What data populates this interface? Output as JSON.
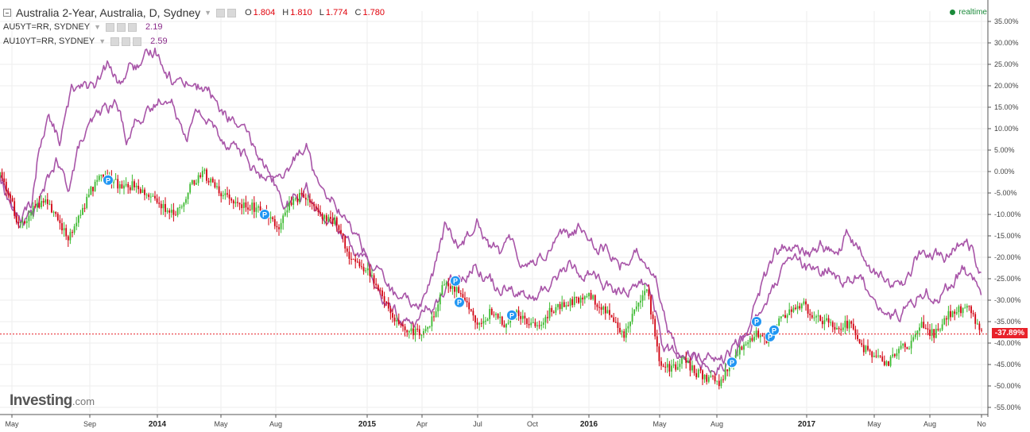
{
  "header": {
    "main_title": "Australia 2-Year, Australia, D, Sydney",
    "ohlc": [
      {
        "label": "O",
        "value": "1.804"
      },
      {
        "label": "H",
        "value": "1.810"
      },
      {
        "label": "L",
        "value": "1.774"
      },
      {
        "label": "C",
        "value": "1.780"
      }
    ],
    "indicators": [
      {
        "label": "AU5YT=RR, SYDNEY",
        "value": "2.19"
      },
      {
        "label": "AU10YT=RR, SYDNEY",
        "value": "2.59"
      }
    ],
    "realtime_label": "realtime"
  },
  "logo": {
    "text": "Investing",
    "suffix": ".com"
  },
  "last_value_label": "-37.89%",
  "colors": {
    "up": "#3cb930",
    "down": "#d1000f",
    "compare": "#a855a8",
    "last_line": "#e8222a",
    "marker": "#2196f3",
    "grid": "#eeeeee",
    "axis": "#444444"
  },
  "markers": {
    "symbol": "P",
    "points": [
      {
        "t": 0.136,
        "y": -2.0
      },
      {
        "t": 0.333,
        "y": -10.0
      },
      {
        "t": 0.573,
        "y": -25.5
      },
      {
        "t": 0.578,
        "y": -30.5
      },
      {
        "t": 0.644,
        "y": -33.5
      },
      {
        "t": 0.921,
        "y": -44.5
      },
      {
        "t": 0.952,
        "y": -35.0
      },
      {
        "t": 0.969,
        "y": -38.5
      },
      {
        "t": 0.974,
        "y": -37.0
      }
    ]
  },
  "chart_data": {
    "type": "line",
    "title": "Australia 2-Year, Australia, D, Sydney",
    "y_unit": "%",
    "ylim": [
      -56,
      36
    ],
    "y_ticks": [
      35,
      30,
      25,
      20,
      15,
      10,
      5,
      0,
      -5,
      -10,
      -15,
      -20,
      -25,
      -30,
      -35,
      -40,
      -45,
      -50,
      -55
    ],
    "x_ticks": [
      {
        "label": "May",
        "t": 0.015,
        "bold": false
      },
      {
        "label": "Sep",
        "t": 0.113,
        "bold": false
      },
      {
        "label": "2014",
        "t": 0.198,
        "bold": true
      },
      {
        "label": "May",
        "t": 0.278,
        "bold": false
      },
      {
        "label": "Aug",
        "t": 0.347,
        "bold": false
      },
      {
        "label": "2015",
        "t": 0.462,
        "bold": true
      },
      {
        "label": "Apr",
        "t": 0.531,
        "bold": false
      },
      {
        "label": "Jul",
        "t": 0.601,
        "bold": false
      },
      {
        "label": "Oct",
        "t": 0.67,
        "bold": false
      },
      {
        "label": "2016",
        "t": 0.741,
        "bold": true
      },
      {
        "label": "May",
        "t": 0.83,
        "bold": false
      },
      {
        "label": "Aug",
        "t": 0.902,
        "bold": false
      },
      {
        "label": "2017",
        "t": 1.015,
        "bold": true
      },
      {
        "label": "May",
        "t": 1.1,
        "bold": false
      },
      {
        "label": "Aug",
        "t": 1.17,
        "bold": false
      },
      {
        "label": "No",
        "t": 1.235,
        "bold": false
      }
    ],
    "last_value": -37.89,
    "series": [
      {
        "name": "Australia 2-Year",
        "style": "candles",
        "points": [
          [
            0.0,
            -1
          ],
          [
            0.01,
            -5
          ],
          [
            0.025,
            -13
          ],
          [
            0.04,
            -9
          ],
          [
            0.055,
            -7
          ],
          [
            0.07,
            -10
          ],
          [
            0.085,
            -16
          ],
          [
            0.1,
            -11
          ],
          [
            0.115,
            -4
          ],
          [
            0.13,
            -1
          ],
          [
            0.14,
            -2
          ],
          [
            0.155,
            -4
          ],
          [
            0.17,
            -3
          ],
          [
            0.185,
            -6
          ],
          [
            0.2,
            -7
          ],
          [
            0.215,
            -10
          ],
          [
            0.23,
            -8
          ],
          [
            0.24,
            -3
          ],
          [
            0.255,
            0
          ],
          [
            0.27,
            -4
          ],
          [
            0.285,
            -6
          ],
          [
            0.3,
            -8
          ],
          [
            0.315,
            -8
          ],
          [
            0.333,
            -10
          ],
          [
            0.35,
            -13
          ],
          [
            0.365,
            -8
          ],
          [
            0.38,
            -5
          ],
          [
            0.395,
            -8
          ],
          [
            0.41,
            -11
          ],
          [
            0.425,
            -12
          ],
          [
            0.44,
            -20
          ],
          [
            0.455,
            -22
          ],
          [
            0.47,
            -25
          ],
          [
            0.485,
            -30
          ],
          [
            0.5,
            -35
          ],
          [
            0.515,
            -37
          ],
          [
            0.53,
            -38
          ],
          [
            0.545,
            -34
          ],
          [
            0.56,
            -25
          ],
          [
            0.575,
            -28
          ],
          [
            0.59,
            -32
          ],
          [
            0.605,
            -36
          ],
          [
            0.62,
            -32
          ],
          [
            0.635,
            -36
          ],
          [
            0.65,
            -33
          ],
          [
            0.665,
            -35
          ],
          [
            0.68,
            -36
          ],
          [
            0.695,
            -32
          ],
          [
            0.71,
            -31
          ],
          [
            0.725,
            -30
          ],
          [
            0.74,
            -28
          ],
          [
            0.755,
            -32
          ],
          [
            0.77,
            -34
          ],
          [
            0.785,
            -38
          ],
          [
            0.8,
            -31
          ],
          [
            0.815,
            -28
          ],
          [
            0.83,
            -44
          ],
          [
            0.845,
            -46
          ],
          [
            0.86,
            -44
          ],
          [
            0.875,
            -47
          ],
          [
            0.89,
            -48
          ],
          [
            0.905,
            -49
          ],
          [
            0.921,
            -45
          ],
          [
            0.935,
            -40
          ],
          [
            0.952,
            -38
          ],
          [
            0.965,
            -39
          ],
          [
            0.98,
            -35
          ],
          [
            0.995,
            -33
          ],
          [
            1.01,
            -31
          ],
          [
            1.025,
            -34
          ],
          [
            1.04,
            -35
          ],
          [
            1.055,
            -37
          ],
          [
            1.07,
            -35
          ],
          [
            1.085,
            -41
          ],
          [
            1.1,
            -43
          ],
          [
            1.115,
            -45
          ],
          [
            1.13,
            -42
          ],
          [
            1.145,
            -40
          ],
          [
            1.16,
            -36
          ],
          [
            1.175,
            -38
          ],
          [
            1.19,
            -34
          ],
          [
            1.205,
            -32
          ],
          [
            1.22,
            -32
          ],
          [
            1.235,
            -37.89
          ]
        ]
      },
      {
        "name": "AU5YT=RR, SYDNEY",
        "style": "line",
        "points": [
          [
            0.0,
            -1
          ],
          [
            0.01,
            -6
          ],
          [
            0.025,
            -12
          ],
          [
            0.04,
            -10
          ],
          [
            0.055,
            -5
          ],
          [
            0.07,
            2
          ],
          [
            0.085,
            -4
          ],
          [
            0.1,
            6
          ],
          [
            0.115,
            10
          ],
          [
            0.13,
            14
          ],
          [
            0.145,
            16
          ],
          [
            0.16,
            8
          ],
          [
            0.175,
            14
          ],
          [
            0.19,
            13
          ],
          [
            0.205,
            18
          ],
          [
            0.22,
            15
          ],
          [
            0.235,
            10
          ],
          [
            0.25,
            14
          ],
          [
            0.265,
            11
          ],
          [
            0.28,
            8
          ],
          [
            0.295,
            7
          ],
          [
            0.31,
            3
          ],
          [
            0.325,
            -1
          ],
          [
            0.34,
            -3
          ],
          [
            0.355,
            -8
          ],
          [
            0.37,
            -7
          ],
          [
            0.385,
            -3
          ],
          [
            0.4,
            -10
          ],
          [
            0.415,
            -12
          ],
          [
            0.43,
            -14
          ],
          [
            0.445,
            -17
          ],
          [
            0.46,
            -22
          ],
          [
            0.475,
            -28
          ],
          [
            0.49,
            -32
          ],
          [
            0.505,
            -34
          ],
          [
            0.52,
            -36
          ],
          [
            0.535,
            -33
          ],
          [
            0.55,
            -30
          ],
          [
            0.565,
            -27
          ],
          [
            0.58,
            -24
          ],
          [
            0.595,
            -21
          ],
          [
            0.61,
            -23
          ],
          [
            0.625,
            -27
          ],
          [
            0.64,
            -25
          ],
          [
            0.655,
            -28
          ],
          [
            0.67,
            -30
          ],
          [
            0.685,
            -28
          ],
          [
            0.7,
            -24
          ],
          [
            0.715,
            -22
          ],
          [
            0.73,
            -24
          ],
          [
            0.745,
            -23
          ],
          [
            0.76,
            -26
          ],
          [
            0.775,
            -29
          ],
          [
            0.79,
            -27
          ],
          [
            0.805,
            -25
          ],
          [
            0.82,
            -28
          ],
          [
            0.835,
            -41
          ],
          [
            0.85,
            -43
          ],
          [
            0.865,
            -45
          ],
          [
            0.88,
            -44
          ],
          [
            0.895,
            -46
          ],
          [
            0.91,
            -44
          ],
          [
            0.925,
            -43
          ],
          [
            0.94,
            -38
          ],
          [
            0.955,
            -32
          ],
          [
            0.97,
            -29
          ],
          [
            0.985,
            -24
          ],
          [
            1.0,
            -21
          ],
          [
            1.015,
            -23
          ],
          [
            1.03,
            -25
          ],
          [
            1.045,
            -22
          ],
          [
            1.06,
            -26
          ],
          [
            1.075,
            -24
          ],
          [
            1.09,
            -27
          ],
          [
            1.105,
            -30
          ],
          [
            1.12,
            -34
          ],
          [
            1.135,
            -33
          ],
          [
            1.15,
            -30
          ],
          [
            1.165,
            -27
          ],
          [
            1.18,
            -29
          ],
          [
            1.195,
            -26
          ],
          [
            1.21,
            -23
          ],
          [
            1.225,
            -25
          ],
          [
            1.235,
            -29
          ]
        ]
      },
      {
        "name": "AU10YT=RR, SYDNEY",
        "style": "line",
        "points": [
          [
            0.0,
            -1
          ],
          [
            0.01,
            -5
          ],
          [
            0.025,
            -12
          ],
          [
            0.04,
            -8
          ],
          [
            0.05,
            7
          ],
          [
            0.06,
            13
          ],
          [
            0.075,
            7
          ],
          [
            0.09,
            18
          ],
          [
            0.105,
            22
          ],
          [
            0.12,
            19
          ],
          [
            0.135,
            24
          ],
          [
            0.15,
            20
          ],
          [
            0.165,
            25
          ],
          [
            0.18,
            24
          ],
          [
            0.195,
            28
          ],
          [
            0.205,
            26
          ],
          [
            0.22,
            21
          ],
          [
            0.235,
            22
          ],
          [
            0.25,
            20
          ],
          [
            0.265,
            18
          ],
          [
            0.28,
            13
          ],
          [
            0.295,
            12
          ],
          [
            0.31,
            7
          ],
          [
            0.325,
            3
          ],
          [
            0.34,
            0
          ],
          [
            0.355,
            -4
          ],
          [
            0.37,
            2
          ],
          [
            0.385,
            8
          ],
          [
            0.395,
            0
          ],
          [
            0.41,
            -3
          ],
          [
            0.425,
            -7
          ],
          [
            0.44,
            -13
          ],
          [
            0.455,
            -17
          ],
          [
            0.47,
            -22
          ],
          [
            0.485,
            -26
          ],
          [
            0.5,
            -30
          ],
          [
            0.515,
            -32
          ],
          [
            0.53,
            -30
          ],
          [
            0.545,
            -24
          ],
          [
            0.56,
            -13
          ],
          [
            0.575,
            -17
          ],
          [
            0.59,
            -14
          ],
          [
            0.6,
            -9
          ],
          [
            0.615,
            -16
          ],
          [
            0.63,
            -19
          ],
          [
            0.645,
            -17
          ],
          [
            0.66,
            -21
          ],
          [
            0.675,
            -20
          ],
          [
            0.69,
            -18
          ],
          [
            0.705,
            -13
          ],
          [
            0.72,
            -15
          ],
          [
            0.735,
            -13
          ],
          [
            0.75,
            -16
          ],
          [
            0.765,
            -18
          ],
          [
            0.78,
            -22
          ],
          [
            0.795,
            -19
          ],
          [
            0.81,
            -20
          ],
          [
            0.825,
            -23
          ],
          [
            0.84,
            -38
          ],
          [
            0.855,
            -41
          ],
          [
            0.87,
            -42
          ],
          [
            0.885,
            -44
          ],
          [
            0.9,
            -45
          ],
          [
            0.915,
            -44
          ],
          [
            0.93,
            -40
          ],
          [
            0.945,
            -33
          ],
          [
            0.96,
            -26
          ],
          [
            0.975,
            -20
          ],
          [
            0.99,
            -17
          ],
          [
            1.005,
            -20
          ],
          [
            1.02,
            -19
          ],
          [
            1.035,
            -17
          ],
          [
            1.05,
            -20
          ],
          [
            1.065,
            -15
          ],
          [
            1.08,
            -19
          ],
          [
            1.095,
            -22
          ],
          [
            1.11,
            -25
          ],
          [
            1.125,
            -27
          ],
          [
            1.14,
            -25
          ],
          [
            1.155,
            -20
          ],
          [
            1.17,
            -19
          ],
          [
            1.185,
            -21
          ],
          [
            1.2,
            -18
          ],
          [
            1.215,
            -17
          ],
          [
            1.225,
            -18
          ],
          [
            1.235,
            -24
          ]
        ]
      }
    ]
  }
}
